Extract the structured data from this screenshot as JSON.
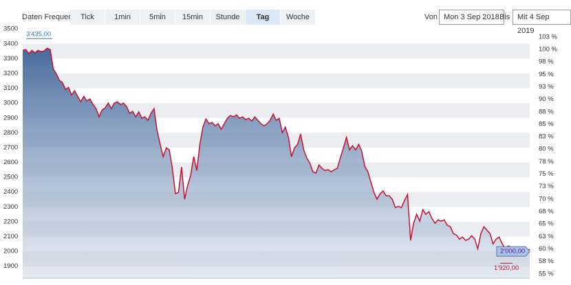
{
  "toolbar": {
    "label": "Daten Frequenz",
    "buttons": [
      "Tick",
      "1min",
      "5min",
      "15min",
      "Stunde",
      "Tag",
      "Woche"
    ],
    "active": "Tag",
    "from_label": "Von",
    "from": "Mon 3 Sep 2018",
    "to_label": "Bis",
    "to": "Mit 4 Sep 2019"
  },
  "chart_data": {
    "type": "area-line",
    "color": "#c8102e",
    "fill": "#4a6fa5",
    "values": [
      3356,
      3361,
      3333,
      3356,
      3338,
      3356,
      3347,
      3352,
      3370,
      3361,
      3231,
      3199,
      3153,
      3139,
      3093,
      3106,
      3056,
      3083,
      3046,
      3009,
      3046,
      3014,
      3028,
      2991,
      2963,
      2907,
      2954,
      2968,
      3000,
      2963,
      3000,
      3009,
      2991,
      3000,
      2977,
      2931,
      2944,
      2907,
      2940,
      2898,
      2907,
      2884,
      2931,
      2963,
      2815,
      2722,
      2639,
      2699,
      2685,
      2560,
      2389,
      2398,
      2569,
      2352,
      2444,
      2514,
      2639,
      2546,
      2722,
      2838,
      2893,
      2861,
      2870,
      2847,
      2861,
      2824,
      2861,
      2898,
      2917,
      2907,
      2921,
      2898,
      2907,
      2889,
      2898,
      2880,
      2907,
      2884,
      2861,
      2847,
      2861,
      2884,
      2926,
      2884,
      2898,
      2801,
      2838,
      2769,
      2639,
      2699,
      2722,
      2792,
      2685,
      2630,
      2597,
      2537,
      2528,
      2583,
      2560,
      2546,
      2551,
      2537,
      2551,
      2560,
      2630,
      2699,
      2769,
      2685,
      2713,
      2685,
      2722,
      2676,
      2574,
      2537,
      2468,
      2398,
      2352,
      2389,
      2407,
      2375,
      2375,
      2352,
      2295,
      2305,
      2295,
      2343,
      2384,
      2074,
      2190,
      2250,
      2204,
      2282,
      2250,
      2268,
      2222,
      2190,
      2213,
      2204,
      2213,
      2176,
      2167,
      2120,
      2111,
      2083,
      2097,
      2074,
      2083,
      2106,
      2083,
      2018,
      2120,
      2167,
      2143,
      2120,
      2051,
      2083,
      2097,
      2051,
      2018,
      2037,
      2028,
      2018,
      2028,
      2005,
      2018,
      2005,
      2014
    ],
    "ylim": [
      1820,
      3510
    ],
    "yticks": [
      1900,
      2000,
      2100,
      2200,
      2300,
      2400,
      2500,
      2600,
      2700,
      2800,
      2900,
      3000,
      3100,
      3200,
      3300,
      3400,
      3500
    ],
    "y2lim": [
      54.15,
      104.4
    ],
    "y2ticks": [
      {
        "value": 55,
        "label": "55 %"
      },
      {
        "value": 57.5,
        "label": "58 %"
      },
      {
        "value": 60,
        "label": "60 %"
      },
      {
        "value": 62.5,
        "label": "63 %"
      },
      {
        "value": 65,
        "label": "65 %"
      },
      {
        "value": 67.5,
        "label": "68 %"
      },
      {
        "value": 70,
        "label": "70 %"
      },
      {
        "value": 72.5,
        "label": "73 %"
      },
      {
        "value": 75,
        "label": "75 %"
      },
      {
        "value": 77.5,
        "label": "78 %"
      },
      {
        "value": 80,
        "label": "80 %"
      },
      {
        "value": 82.5,
        "label": "83 %"
      },
      {
        "value": 85,
        "label": "85 %"
      },
      {
        "value": 87.5,
        "label": "88 %"
      },
      {
        "value": 90,
        "label": "90 %"
      },
      {
        "value": 92.5,
        "label": "93 %"
      },
      {
        "value": 95,
        "label": "95 %"
      },
      {
        "value": 97.5,
        "label": "98 %"
      },
      {
        "value": 100,
        "label": "100 %"
      },
      {
        "value": 102.5,
        "label": "103 %"
      }
    ],
    "annotations": {
      "max": {
        "value": 3435,
        "label": "3'435,00"
      },
      "min": {
        "value": 1920,
        "label": "1'920,00"
      },
      "last": {
        "value": 2000,
        "label": "2'000,00"
      }
    }
  }
}
